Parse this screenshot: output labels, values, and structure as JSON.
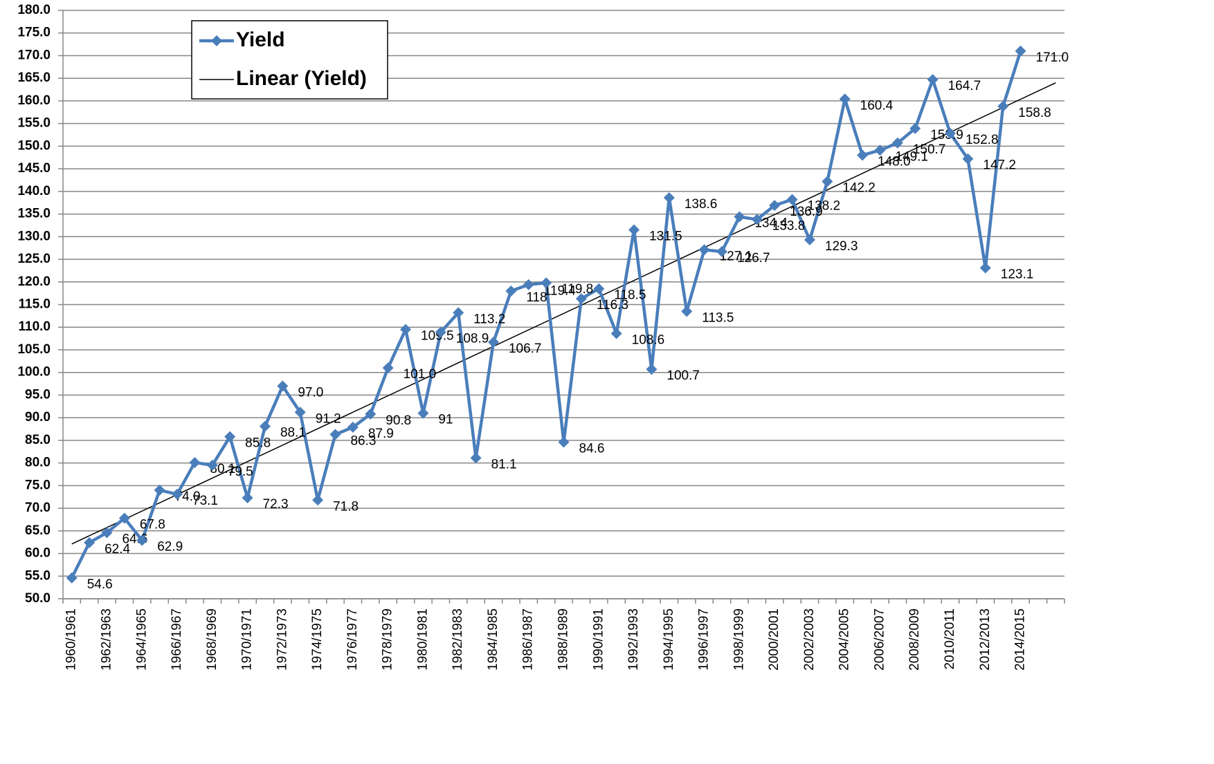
{
  "chart_data": {
    "type": "line",
    "categories": [
      "1960/1961",
      null,
      "1962/1963",
      null,
      "1964/1965",
      null,
      "1966/1967",
      null,
      "1968/1969",
      null,
      "1970/1971",
      null,
      "1972/1973",
      null,
      "1974/1975",
      null,
      "1976/1977",
      null,
      "1978/1979",
      null,
      "1980/1981",
      null,
      "1982/1983",
      null,
      "1984/1985",
      null,
      "1986/1987",
      null,
      "1988/1989",
      null,
      "1990/1991",
      null,
      "1992/1993",
      null,
      "1994/1995",
      null,
      "1996/1997",
      null,
      "1998/1999",
      null,
      "2000/2001",
      null,
      "2002/2003",
      null,
      "2004/2005",
      null,
      "2006/2007",
      null,
      "2008/2009",
      null,
      "2010/2011",
      null,
      "2012/2013",
      null,
      "2014/2015",
      null,
      null
    ],
    "series": [
      {
        "name": "Yield",
        "color": "#4a7ebb",
        "values": [
          54.6,
          62.4,
          64.6,
          67.8,
          62.9,
          74.0,
          73.1,
          80.1,
          79.5,
          85.8,
          72.3,
          88.1,
          97.0,
          91.2,
          71.8,
          86.3,
          87.9,
          90.8,
          101.0,
          109.5,
          91,
          108.9,
          113.2,
          81.1,
          106.7,
          118,
          119.4,
          119.8,
          84.6,
          116.3,
          118.5,
          108.6,
          131.5,
          100.7,
          138.6,
          113.5,
          127.1,
          126.7,
          134.4,
          133.8,
          136.9,
          138.2,
          129.3,
          142.2,
          160.4,
          148.0,
          149.1,
          150.7,
          153.9,
          164.7,
          152.8,
          147.2,
          123.1,
          158.8,
          171.0,
          null,
          null
        ],
        "value_labels": [
          "54.6",
          "62.4",
          "64.6",
          "67.8",
          "62.9",
          "74.0",
          "73.1",
          "80.1",
          "79.5",
          "85.8",
          "72.3",
          "88.1",
          "97.0",
          "91.2",
          "71.8",
          "86.3",
          "87.9",
          "90.8",
          "101.0",
          "109.5",
          "91",
          "108.9",
          "113.2",
          "81.1",
          "106.7",
          "118",
          "119.4",
          "119.8",
          "84.6",
          "116.3",
          "118.5",
          "108.6",
          "131.5",
          "100.7",
          "138.6",
          "113.5",
          "127.1",
          "126.7",
          "134.4",
          "133.8",
          "136.9",
          "138.2",
          "129.3",
          "142.2",
          "160.4",
          "148.0",
          "149.1",
          "150.7",
          "153.9",
          "164.7",
          "152.8",
          "147.2",
          "123.1",
          "158.8",
          "171.0",
          null,
          null
        ]
      }
    ],
    "trendline": {
      "name": "Linear (Yield)",
      "color": "#000000",
      "values": [
        62.1,
        164.0
      ]
    },
    "ylim": [
      50,
      180
    ],
    "yticks": [
      {
        "value": 50,
        "label": "50.0"
      },
      {
        "value": 55,
        "label": "55.0"
      },
      {
        "value": 60,
        "label": "60.0"
      },
      {
        "value": 65,
        "label": "65.0"
      },
      {
        "value": 70,
        "label": "70.0"
      },
      {
        "value": 75,
        "label": "75.0"
      },
      {
        "value": 80,
        "label": "80.0"
      },
      {
        "value": 85,
        "label": "85.0"
      },
      {
        "value": 90,
        "label": "90.0"
      },
      {
        "value": 95,
        "label": "95.0"
      },
      {
        "value": 100,
        "label": "100.0"
      },
      {
        "value": 105,
        "label": "105.0"
      },
      {
        "value": 110,
        "label": "110.0"
      },
      {
        "value": 115,
        "label": "115.0"
      },
      {
        "value": 120,
        "label": "120.0"
      },
      {
        "value": 125,
        "label": "125.0"
      },
      {
        "value": 130,
        "label": "130.0"
      },
      {
        "value": 135,
        "label": "135.0"
      },
      {
        "value": 140,
        "label": "140.0"
      },
      {
        "value": 145,
        "label": "145.0"
      },
      {
        "value": 150,
        "label": "150.0"
      },
      {
        "value": 155,
        "label": "155.0"
      },
      {
        "value": 160,
        "label": "160.0"
      },
      {
        "value": 165,
        "label": "165.0"
      },
      {
        "value": 170,
        "label": "170.0"
      },
      {
        "value": 175,
        "label": "175.0"
      },
      {
        "value": 180,
        "label": "180.0"
      }
    ],
    "grid": true,
    "legend": "upper left"
  }
}
